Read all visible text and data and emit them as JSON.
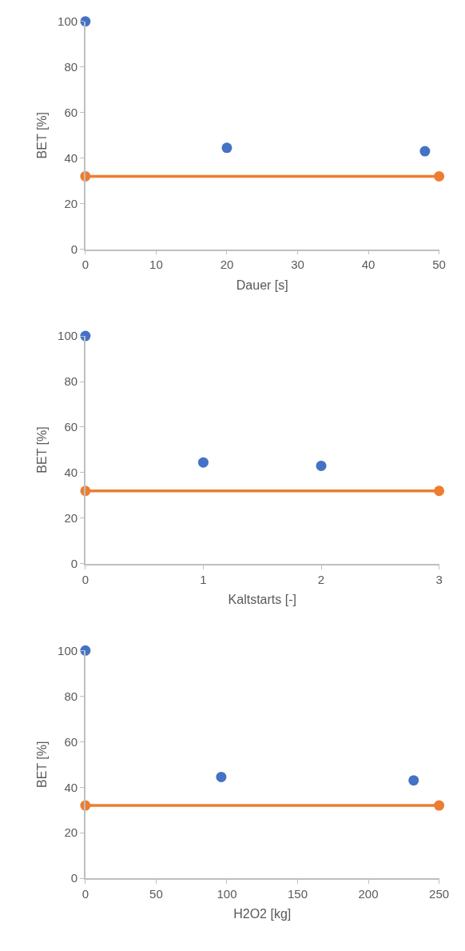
{
  "chart_data": [
    {
      "type": "scatter",
      "xlabel": "Dauer [s]",
      "ylabel": "BET [%]",
      "xlim": [
        0,
        50
      ],
      "xticks": [
        0,
        10,
        20,
        30,
        40,
        50
      ],
      "ylim": [
        0,
        100
      ],
      "yticks": [
        0,
        20,
        40,
        60,
        80,
        100
      ],
      "marker": "circle",
      "series": [
        {
          "color": "#4472c4",
          "x": [
            0,
            20,
            48
          ],
          "values": [
            100,
            44.5,
            43
          ]
        },
        {
          "type": "line",
          "color": "#ed7d31",
          "x": [
            0,
            50
          ],
          "values": [
            32,
            32
          ],
          "line_style": "solid"
        }
      ]
    },
    {
      "type": "scatter",
      "xlabel": "Kaltstarts [-]",
      "ylabel": "BET [%]",
      "xlim": [
        0,
        3
      ],
      "xticks": [
        0,
        1,
        2,
        3
      ],
      "ylim": [
        0,
        100
      ],
      "yticks": [
        0,
        20,
        40,
        60,
        80,
        100
      ],
      "marker": "circle",
      "series": [
        {
          "color": "#4472c4",
          "x": [
            0,
            1,
            2
          ],
          "values": [
            100,
            44.5,
            43
          ]
        },
        {
          "type": "line",
          "color": "#ed7d31",
          "x": [
            0,
            3
          ],
          "values": [
            32,
            32
          ],
          "line_style": "solid"
        }
      ]
    },
    {
      "type": "scatter",
      "xlabel": "H2O2 [kg]",
      "ylabel": "BET [%]",
      "xlim": [
        0,
        250
      ],
      "xticks": [
        0,
        50,
        100,
        150,
        200,
        250
      ],
      "ylim": [
        0,
        100
      ],
      "yticks": [
        0,
        20,
        40,
        60,
        80,
        100
      ],
      "marker": "circle",
      "series": [
        {
          "color": "#4472c4",
          "x": [
            0,
            96,
            232
          ],
          "values": [
            100,
            44.5,
            43
          ]
        },
        {
          "type": "line",
          "color": "#ed7d31",
          "x": [
            0,
            250
          ],
          "values": [
            32,
            32
          ],
          "line_style": "solid"
        }
      ]
    }
  ]
}
